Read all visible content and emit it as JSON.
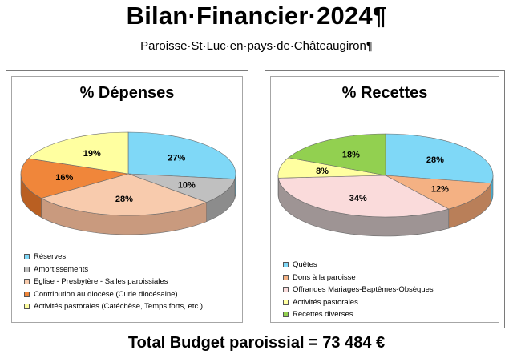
{
  "header": {
    "title": "Bilan·Financier·2024¶",
    "subtitle": "Paroisse·St·Luc·en·pays·de·Châteaugiron¶"
  },
  "footer": {
    "total": "Total Budget paroissial = 73 484 €"
  },
  "chart_data": [
    {
      "type": "pie",
      "title": "% Dépenses",
      "legend_position": "bottom-left",
      "slices": [
        {
          "label": "Réserves",
          "value": 27,
          "display": "27%",
          "color": "#7fd8f7",
          "side": "#4aa9cb"
        },
        {
          "label": "Amortissements",
          "value": 10,
          "display": "10%",
          "color": "#c0c0c0",
          "side": "#8c8c8c"
        },
        {
          "label": "Eglise - Presbytère - Salles paroissiales",
          "value": 28,
          "display": "28%",
          "color": "#f8cbad",
          "side": "#c99a7e"
        },
        {
          "label": "Contribution au diocèse (Curie diocésaine)",
          "value": 16,
          "display": "16%",
          "color": "#f0863a",
          "side": "#b95f22"
        },
        {
          "label": "Activités pastorales (Catéchèse, Temps forts, etc.)",
          "value": 19,
          "display": "19%",
          "color": "#ffffa0",
          "side": "#c8c87a"
        }
      ]
    },
    {
      "type": "pie",
      "title": "% Recettes",
      "legend_position": "bottom-left",
      "slices": [
        {
          "label": "Quêtes",
          "value": 28,
          "display": "28%",
          "color": "#7fd8f7",
          "side": "#4aa9cb"
        },
        {
          "label": "Dons à la paroisse",
          "value": 12,
          "display": "12%",
          "color": "#f4b183",
          "side": "#b97f59"
        },
        {
          "label": "Offrandes Mariages-Baptêmes-Obsèques",
          "value": 34,
          "display": "34%",
          "color": "#fadbdb",
          "side": "#9e9494"
        },
        {
          "label": "Activités pastorales",
          "value": 8,
          "display": "8%",
          "color": "#ffffa0",
          "side": "#c8c87a"
        },
        {
          "label": "Recettes diverses",
          "value": 18,
          "display": "18%",
          "color": "#92d050",
          "side": "#5f9a2e"
        }
      ]
    }
  ]
}
